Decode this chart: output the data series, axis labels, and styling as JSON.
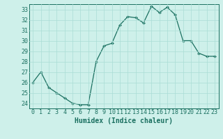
{
  "x": [
    0,
    1,
    2,
    3,
    4,
    5,
    6,
    7,
    8,
    9,
    10,
    11,
    12,
    13,
    14,
    15,
    16,
    17,
    18,
    19,
    20,
    21,
    22,
    23
  ],
  "y": [
    26.0,
    27.0,
    25.5,
    25.0,
    24.5,
    24.0,
    23.85,
    23.85,
    28.0,
    29.5,
    29.75,
    31.5,
    32.3,
    32.2,
    31.7,
    33.3,
    32.7,
    33.2,
    32.5,
    30.0,
    30.0,
    28.8,
    28.5,
    28.5
  ],
  "line_color": "#1a7060",
  "marker_color": "#1a7060",
  "bg_color": "#cef0ea",
  "grid_color": "#aaddd5",
  "axis_color": "#1a7060",
  "xlabel": "Humidex (Indice chaleur)",
  "xlim": [
    -0.5,
    23.5
  ],
  "ylim": [
    23.5,
    33.5
  ],
  "yticks": [
    24,
    25,
    26,
    27,
    28,
    29,
    30,
    31,
    32,
    33
  ],
  "xticks": [
    0,
    1,
    2,
    3,
    4,
    5,
    6,
    7,
    8,
    9,
    10,
    11,
    12,
    13,
    14,
    15,
    16,
    17,
    18,
    19,
    20,
    21,
    22,
    23
  ],
  "tick_font_size": 6.0,
  "label_font_size": 7.0
}
